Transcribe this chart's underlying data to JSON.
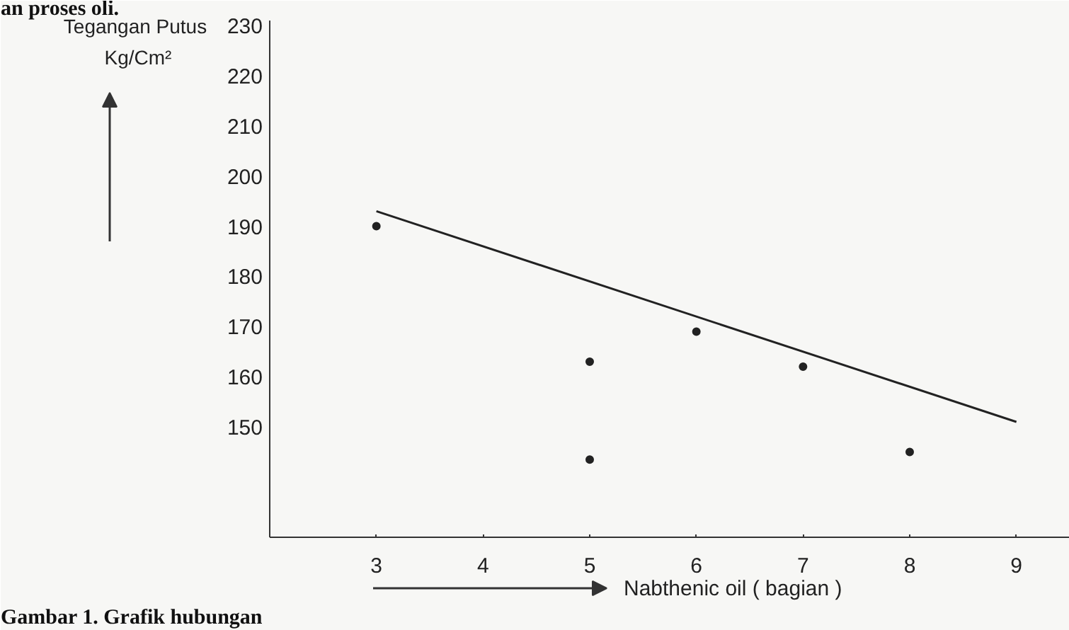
{
  "chart_data": {
    "type": "scatter",
    "xlabel": "Nabthenic oil ( bagian )",
    "ylabel": "Tegangan Putus Kg/Cm²",
    "annotations": [
      "an proses oli.",
      "Gambar 1. Grafik hubungan"
    ],
    "series": [
      {
        "color": "#222222",
        "x": [
          3,
          5,
          5,
          6,
          7,
          8
        ],
        "values": [
          190,
          163,
          143.5,
          169,
          162,
          145
        ],
        "marker": "circle"
      },
      {
        "type": "line",
        "color": "#222222",
        "x": [
          3,
          9
        ],
        "values": [
          193,
          151
        ]
      }
    ],
    "xlim": [
      2,
      9.5
    ],
    "ylim": [
      128,
      231
    ],
    "xticks": [
      3,
      4,
      5,
      6,
      7,
      8,
      9
    ],
    "yticks": [
      150,
      160,
      170,
      180,
      190,
      200,
      210,
      220,
      230
    ],
    "grid": false,
    "line_style": "solid"
  }
}
